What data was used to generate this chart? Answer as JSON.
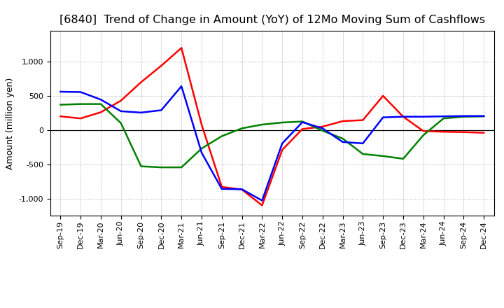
{
  "title": "[6840]  Trend of Change in Amount (YoY) of 12Mo Moving Sum of Cashflows",
  "ylabel": "Amount (million yen)",
  "x_labels": [
    "Sep-19",
    "Dec-19",
    "Mar-20",
    "Jun-20",
    "Sep-20",
    "Dec-20",
    "Mar-21",
    "Jun-21",
    "Sep-21",
    "Dec-21",
    "Mar-22",
    "Jun-22",
    "Sep-22",
    "Dec-22",
    "Mar-23",
    "Jun-23",
    "Sep-23",
    "Dec-23",
    "Mar-24",
    "Jun-24",
    "Sep-24",
    "Dec-24"
  ],
  "operating": [
    200,
    170,
    260,
    430,
    700,
    940,
    1200,
    80,
    -830,
    -870,
    -1100,
    -290,
    15,
    50,
    130,
    145,
    500,
    195,
    -15,
    -25,
    -30,
    -40
  ],
  "investing": [
    370,
    380,
    380,
    100,
    -530,
    -545,
    -545,
    -270,
    -90,
    25,
    80,
    110,
    125,
    -10,
    -125,
    -350,
    -380,
    -420,
    -75,
    170,
    195,
    200
  ],
  "free": [
    560,
    555,
    445,
    275,
    255,
    290,
    640,
    -330,
    -860,
    -865,
    -1030,
    -195,
    115,
    25,
    -175,
    -195,
    185,
    195,
    195,
    200,
    205,
    205
  ],
  "ylim": [
    -1250,
    1450
  ],
  "yticks": [
    -1000,
    -500,
    0,
    500,
    1000
  ],
  "line_colors": {
    "operating": "#ff0000",
    "investing": "#008000",
    "free": "#0000ff"
  },
  "line_width": 1.8,
  "bg_color": "#ffffff",
  "grid_color": "#888888",
  "title_fontsize": 11.5,
  "ylabel_fontsize": 9,
  "tick_fontsize": 8,
  "legend_fontsize": 9
}
